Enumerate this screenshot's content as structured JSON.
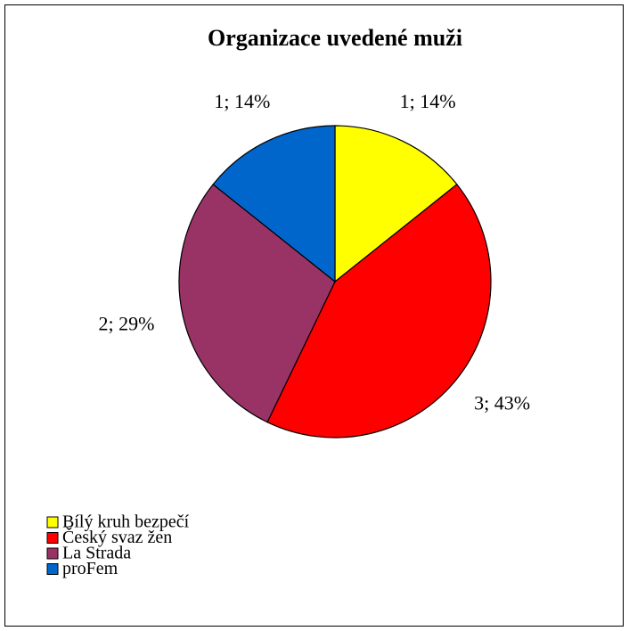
{
  "chart_data": {
    "type": "pie",
    "title": "Organizace uvedené muži",
    "categories": [
      "Bílý kruh bezpečí",
      "Český svaz žen",
      "La Strada",
      "proFem"
    ],
    "values": [
      1,
      3,
      2,
      1
    ],
    "value_labels": [
      "1; 14%",
      "3; 43%",
      "2; 29%",
      "1; 14%"
    ],
    "colors": [
      "#ffff00",
      "#ff0000",
      "#993366",
      "#0066cc"
    ],
    "legend": "bottom-left"
  }
}
